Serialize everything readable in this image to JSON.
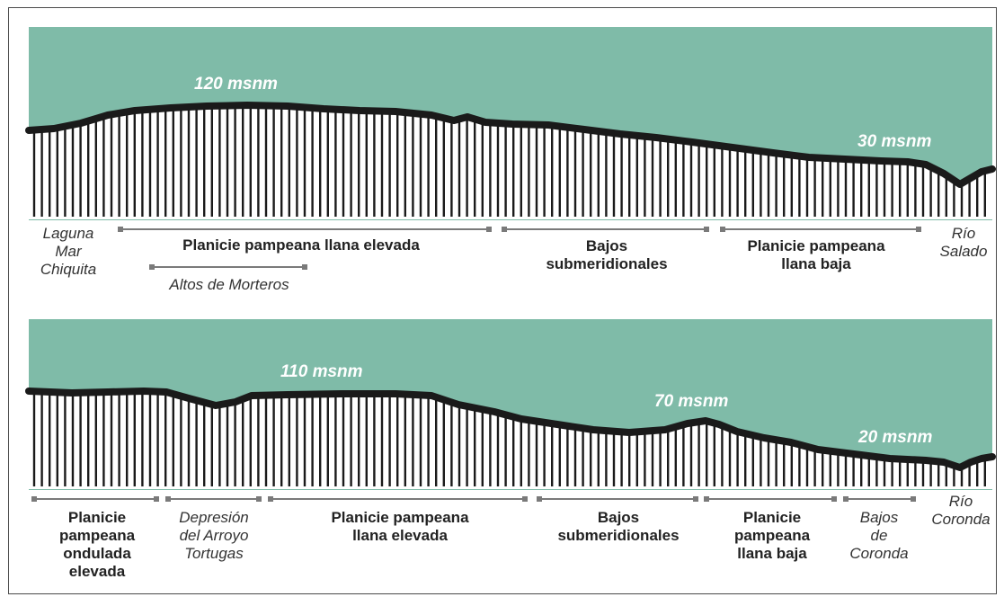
{
  "colors": {
    "sky": "#7fbba8",
    "terrain": "#1a1a1a",
    "bar": "#7a7a7a"
  },
  "profile_top": {
    "elevations": {
      "peak": "120 msnm",
      "low": "30 msnm"
    },
    "labels": {
      "laguna": "Laguna\nMar\nChiquita",
      "planicie_elevada": "Planicie pampeana llana elevada",
      "altos": "Altos de Morteros",
      "bajos": "Bajos\nsubmeridionales",
      "planicie_baja": "Planicie pampeana\nllana baja",
      "rio": "Río\nSalado"
    }
  },
  "profile_bottom": {
    "elevations": {
      "peak": "110 msnm",
      "mid": "70 msnm",
      "low": "20 msnm"
    },
    "labels": {
      "ondulada": "Planicie\npampeana\nondulada\nelevada",
      "depresion": "Depresión\ndel Arroyo\nTortugas",
      "planicie_elevada": "Planicie pampeana\nllana elevada",
      "bajos": "Bajos\nsubmeridionales",
      "planicie_baja": "Planicie\npampeana\nllana baja",
      "bajos_coronda": "Bajos\nde\nCoronda",
      "rio": "Río\nCoronda"
    }
  }
}
